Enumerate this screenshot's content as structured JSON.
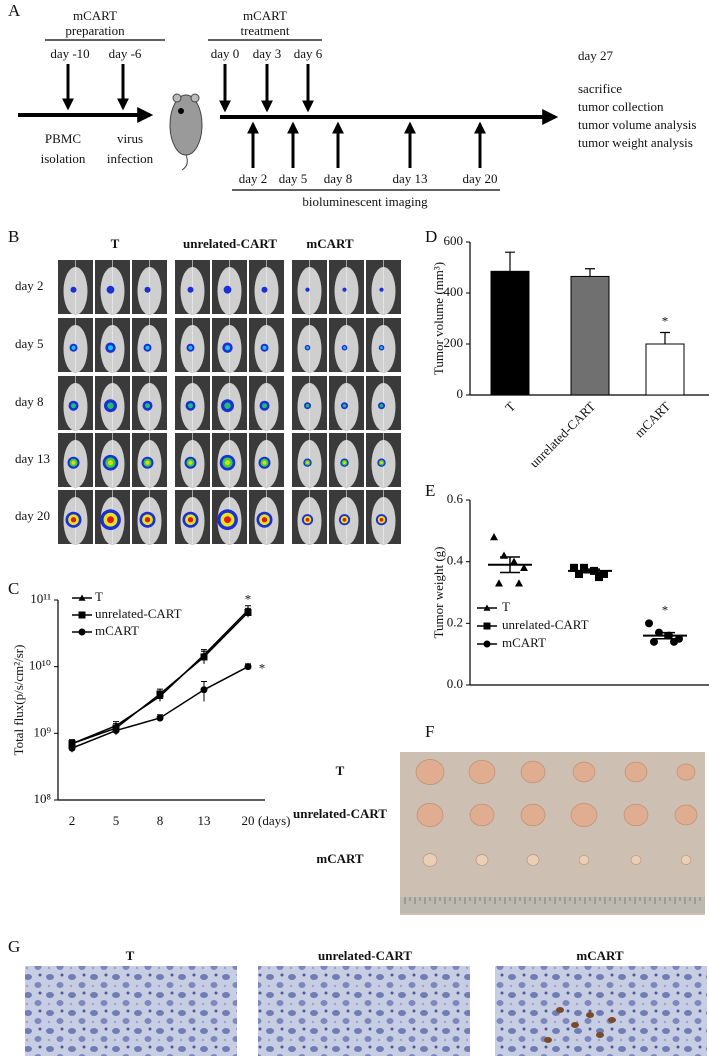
{
  "panel_letters": [
    "A",
    "B",
    "C",
    "D",
    "E",
    "F",
    "G"
  ],
  "timeline": {
    "preparation_title": [
      "mCART",
      "preparation"
    ],
    "preparation_days": [
      "day -10",
      "day -6"
    ],
    "preparation_steps": [
      [
        "PBMC",
        "isolation"
      ],
      [
        "virus",
        "infection"
      ]
    ],
    "treatment_title": [
      "mCART",
      "treatment"
    ],
    "treatment_days": [
      "day 0",
      "day 3",
      "day 6"
    ],
    "imaging_days": [
      "day 2",
      "day 5",
      "day 8",
      "day 13",
      "day 20"
    ],
    "imaging_label": "bioluminescent imaging",
    "end_day": "day 27",
    "end_steps": [
      "sacrifice",
      "tumor collection",
      "tumor volume analysis",
      "tumor weight analysis"
    ]
  },
  "imaging": {
    "groups": [
      "T",
      "unrelated-CART",
      "mCART"
    ],
    "rows": [
      "day 2",
      "day 5",
      "day 8",
      "day 13",
      "day 20"
    ]
  },
  "chart_data": [
    {
      "type": "line",
      "y_label": "Total flux(p/s/cm²/sr)",
      "x_label": "(days)",
      "categories": [
        "2",
        "5",
        "8",
        "13",
        "20"
      ],
      "log_scale": true,
      "ylim": [
        100000000,
        100000000000
      ],
      "yticks": [
        {
          "value": 100000000,
          "label": "10⁸"
        },
        {
          "value": 1000000000,
          "label": "10⁹"
        },
        {
          "value": 10000000000,
          "label": "10¹⁰"
        },
        {
          "value": 100000000000,
          "label": "10¹¹"
        }
      ],
      "series": [
        {
          "name": "T",
          "marker": "triangle",
          "color": "#000000",
          "values": [
            700000000,
            1300000000,
            3600000000,
            15000000000,
            70000000000
          ],
          "errors": [
            100000000,
            200000000,
            600000000,
            3000000000,
            12000000000
          ],
          "annotation": "*"
        },
        {
          "name": "unrelated-CART",
          "marker": "square",
          "color": "#000000",
          "values": [
            700000000,
            1200000000,
            3900000000,
            14000000000,
            65000000000
          ],
          "errors": [
            100000000,
            200000000,
            700000000,
            3000000000,
            10000000000
          ]
        },
        {
          "name": "mCART",
          "marker": "circle",
          "color": "#000000",
          "values": [
            600000000,
            1100000000,
            1700000000,
            4500000000,
            10000000000
          ],
          "errors": [
            80000000,
            150000000,
            200000000,
            1500000000,
            1000000000
          ],
          "annotation": "*"
        }
      ]
    },
    {
      "type": "bar",
      "y_label": "Tumor volume (mm³)",
      "categories": [
        "T",
        "unrelated-CART",
        "mCART"
      ],
      "values": [
        485,
        465,
        200
      ],
      "errors": [
        75,
        30,
        45
      ],
      "colors": [
        "#000000",
        "#707070",
        "#ffffff"
      ],
      "ylim": [
        0,
        600
      ],
      "yticks": [
        0,
        200,
        400,
        600
      ],
      "annotation": "*",
      "annotation_category": "mCART"
    },
    {
      "type": "dot",
      "y_label": "Tumor weight (g)",
      "ylim": [
        0,
        0.6
      ],
      "yticks": [
        {
          "value": 0,
          "label": "0.0"
        },
        0.2,
        0.4,
        0.6
      ],
      "series": [
        {
          "name": "T",
          "marker": "triangle",
          "values": [
            0.48,
            0.42,
            0.4,
            0.38,
            0.33,
            0.33
          ],
          "mean": 0.39,
          "sem": 0.025
        },
        {
          "name": "unrelated-CART",
          "marker": "square",
          "values": [
            0.38,
            0.38,
            0.37,
            0.36,
            0.36,
            0.35
          ],
          "mean": 0.37,
          "sem": 0.006
        },
        {
          "name": "mCART",
          "marker": "circle",
          "values": [
            0.2,
            0.17,
            0.16,
            0.15,
            0.14,
            0.14
          ],
          "mean": 0.16,
          "sem": 0.01,
          "annotation": "*"
        }
      ]
    }
  ],
  "photo": {
    "rows": [
      "T",
      "unrelated-CART",
      "mCART"
    ]
  },
  "histology": {
    "titles": [
      "T",
      "unrelated-CART",
      "mCART"
    ]
  }
}
